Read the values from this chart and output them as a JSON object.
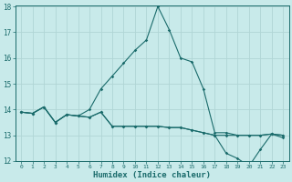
{
  "xlabel": "Humidex (Indice chaleur)",
  "x": [
    0,
    1,
    2,
    3,
    4,
    5,
    6,
    7,
    8,
    9,
    10,
    11,
    12,
    13,
    14,
    15,
    16,
    17,
    18,
    19,
    20,
    21,
    22,
    23
  ],
  "line1": [
    13.9,
    13.85,
    14.1,
    13.5,
    13.8,
    13.75,
    13.7,
    13.9,
    13.35,
    13.35,
    13.35,
    13.35,
    13.35,
    13.3,
    13.3,
    13.2,
    13.1,
    13.0,
    13.0,
    13.0,
    13.0,
    13.0,
    13.05,
    13.0
  ],
  "line2": [
    13.9,
    13.85,
    14.1,
    13.5,
    13.8,
    13.75,
    14.0,
    14.8,
    15.3,
    15.8,
    16.3,
    16.7,
    18.0,
    17.1,
    16.0,
    15.85,
    14.8,
    13.1,
    13.1,
    13.0,
    13.0,
    13.0,
    13.05,
    13.0
  ],
  "line3": [
    13.9,
    13.85,
    14.1,
    13.5,
    13.8,
    13.75,
    13.7,
    13.9,
    13.35,
    13.35,
    13.35,
    13.35,
    13.35,
    13.3,
    13.3,
    13.2,
    13.1,
    13.0,
    12.3,
    12.1,
    11.8,
    12.45,
    13.05,
    12.9
  ],
  "line_color": "#1a6b6b",
  "bg_color": "#c8eaea",
  "grid_color": "#b0d5d5",
  "ylim": [
    12,
    18
  ],
  "xlim": [
    -0.5,
    23.5
  ],
  "yticks": [
    12,
    13,
    14,
    15,
    16,
    17,
    18
  ],
  "xticks": [
    0,
    1,
    2,
    3,
    4,
    5,
    6,
    7,
    8,
    9,
    10,
    11,
    12,
    13,
    14,
    15,
    16,
    17,
    18,
    19,
    20,
    21,
    22,
    23
  ]
}
